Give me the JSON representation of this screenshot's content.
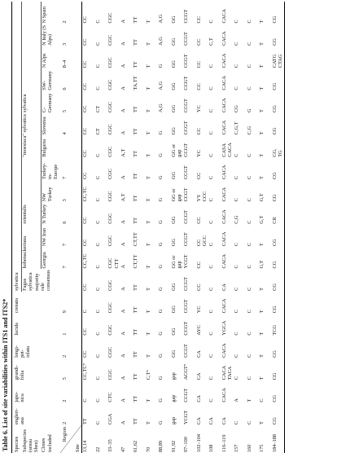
{
  "caption": "Table 6. List of site variabilities within ITS1 and ITS2*",
  "table": {
    "labels": {
      "species": "Species",
      "subspecies": "Subspecies (sensu Shen)",
      "clones": "Clones included",
      "region": "Region",
      "site": "Site"
    },
    "species": [
      {
        "name": "engleri-\nana",
        "region": 2
      },
      {
        "name": "japo-\nnica",
        "region": 2
      },
      {
        "name": "grandi-\nfolia",
        "region": 5
      },
      {
        "name": "longi-\npet-\niolata",
        "region": 2
      },
      {
        "name": "lucida",
        "region": 1
      },
      {
        "name": "crenata",
        "region": 9
      },
      {
        "name": "sylvatica",
        "subspecies": [
          {
            "name": null,
            "clones": [
              {
                "name": "Fagus sylvatica majority rule consensus",
                "region": null
              }
            ]
          },
          {
            "name": "hohenackeriana",
            "clones": [
              {
                "name": "Georgia",
                "region": 7
              },
              {
                "name": "NW Iran",
                "region": 7
              }
            ]
          },
          {
            "name": "orientalis",
            "clones": [
              {
                "name": "N Turkey",
                "region": 6
              },
              {
                "name": "NW Turkey",
                "region": 3
              },
              {
                "name": "Turkey-in-\nEurope",
                "region": 7
              }
            ]
          },
          {
            "name": "\"moesiaca\" sylvatica",
            "clones": [
              {
                "name": "Bulgaria",
                "region": null
              },
              {
                "name": "Slovenia",
                "region": 4
              }
            ]
          },
          {
            "name": "sylvatica",
            "clones": [
              {
                "name": "C-Germany",
                "region": 5
              },
              {
                "name": "SW-Germany",
                "region": 6
              },
              {
                "name": "N Alps",
                "region": "8–4"
              },
              {
                "name": "N Italy (S Alps)",
                "region": 3
              },
              {
                "name": "N Spain",
                "region": 2
              }
            ]
          }
        ]
      }
    ],
    "rows": [
      {
        "site": "13,14",
        "values": [
          "TT",
          "C",
          "CC,TC°",
          "CC",
          "CC",
          "C",
          "CC",
          "CC,TC",
          "CC",
          "CC",
          "CC,TC",
          "CC",
          "CC",
          "CC",
          "CC",
          "CC",
          "CC",
          "CC",
          "CC"
        ]
      },
      {
        "site": "22",
        "values": [
          "C",
          "C",
          "C",
          "C",
          "C",
          "C",
          "C",
          "C",
          "C",
          "C",
          "C",
          "C",
          "C",
          "CT",
          "CT",
          "C",
          "C",
          "C",
          "C"
        ]
      },
      {
        "site": "33–35",
        "values": [
          "CGA",
          "CTC",
          "CGC",
          "CGC",
          "CGC",
          "CGC",
          "CGC",
          "CGC\nCTT",
          "CGC",
          "CGC",
          "CGC",
          "CGC",
          "CGC",
          "CGC",
          "CGC",
          "CGC",
          "CGC",
          "CGC",
          "CGC"
        ]
      },
      {
        "site": "47",
        "values": [
          "A",
          "A",
          "A",
          "A",
          "A",
          "A",
          "A",
          "A",
          "A",
          "A",
          "A,T",
          "A",
          "A,T",
          "A",
          "A",
          "A",
          "A",
          "A",
          "A"
        ]
      },
      {
        "site": "61,62",
        "values": [
          "TT",
          "TT",
          "TT",
          "TT",
          "TT",
          "TT",
          "TT",
          "CT,TT",
          "CT,TT",
          "TT",
          "TT",
          "TT",
          "TT",
          "TT",
          "TT",
          "TA,TT",
          "TT",
          "TT",
          "TT"
        ]
      },
      {
        "site": "70",
        "values": [
          "T",
          "T",
          "C,T°",
          "T",
          "T",
          "T",
          "T",
          "T",
          "T",
          "T",
          "T",
          "T",
          "T",
          "T",
          "T",
          "T",
          "T",
          "T",
          "T"
        ]
      },
      {
        "site": "88,89",
        "values": [
          "G",
          "G",
          "G",
          "G",
          "G",
          "G",
          "G",
          "G",
          "G",
          "G",
          "G",
          "G",
          "G",
          "G",
          "A,G",
          "A,G",
          "G",
          "A,G",
          "A,G"
        ]
      },
      {
        "site": "91,92",
        "values": [
          "gap",
          "gap",
          "gap",
          "GG",
          "GG",
          "GG",
          "GG",
          "GG or\ngap",
          "GG",
          "GG",
          "GG or\ngap",
          "GG",
          "GG or\ngap",
          "GG",
          "GG",
          "GG",
          "GG",
          "GG",
          "GG"
        ]
      },
      {
        "site": "97–100",
        "values": [
          "YCGT",
          "CCGT",
          "ACGT°",
          "CCGT",
          "CCGT",
          "CCGT",
          "CCGT",
          "YCGT",
          "CCGT",
          "CCGT",
          "CCGT",
          "CCGT",
          "CCGT",
          "CCGT",
          "CCGT",
          "CCGT",
          "CCGT",
          "CCGT",
          "CCGT"
        ]
      },
      {
        "site": "102–104",
        "values": [
          "CA",
          "CA",
          "CA",
          "CA",
          "AYC",
          "YC",
          "CC",
          "CC",
          "CC\nGCC",
          "CC",
          "YY\nCCC",
          "CC",
          "YC",
          "CC",
          "YC",
          "CC",
          "CC",
          "CC",
          "CC"
        ]
      },
      {
        "site": "108",
        "values": [
          "CA",
          "C",
          "C",
          "C",
          "C",
          "C",
          "C",
          "C",
          "C",
          "C",
          "C",
          "C",
          "C",
          "C",
          "C",
          "C",
          "C",
          "C,T",
          "C"
        ]
      },
      {
        "site": "116–119",
        "values": [
          "CA",
          "CACA",
          "CACA\nTACA",
          "CACA",
          "YGCA",
          "CACA",
          "CA",
          "CACA",
          "CACA",
          "CACA",
          "CACA",
          "CACA",
          "CASA\nCACA",
          "CACA",
          "CACA",
          "CACA",
          "CACA",
          "CACA",
          "CACA"
        ]
      },
      {
        "site": "157",
        "values": [
          "C",
          "A",
          "C",
          "C",
          "C",
          "C",
          "C",
          "C",
          "C",
          "C,G",
          "C",
          "C",
          "C",
          "C,G,T",
          "CG",
          "C",
          "C",
          "C",
          "C"
        ]
      },
      {
        "site": "160",
        "values": [
          "C",
          "T",
          "C",
          "C",
          "C",
          "C",
          "C",
          "C",
          "C",
          "C",
          "C",
          "C",
          "C",
          "C,G",
          "G",
          "C",
          "C",
          "C",
          "C"
        ]
      },
      {
        "site": "175",
        "values": [
          "T",
          "C",
          "T",
          "T",
          "T",
          "T",
          "T",
          "G,T",
          "T",
          "G,T",
          "G,T",
          "T",
          "T",
          "T",
          "T",
          "T",
          "T",
          "T",
          "T"
        ]
      },
      {
        "site": "184–188",
        "values": [
          "CG",
          "CG",
          "CG",
          "CG",
          "TCG",
          "CG",
          "CG",
          "CG",
          "CG",
          "CR",
          "CG",
          "CG",
          "CG,\nTG",
          "CG",
          "CG",
          "CG",
          "CATG\nCTAG",
          "CG",
          "CG"
        ]
      }
    ]
  }
}
